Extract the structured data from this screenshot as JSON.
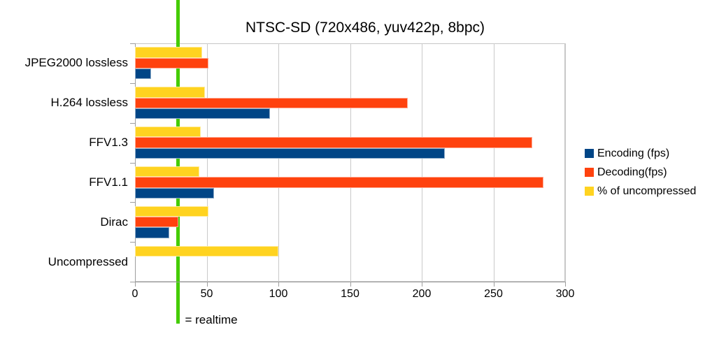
{
  "chart_data": {
    "type": "bar",
    "orientation": "horizontal",
    "title": "NTSC-SD (720x486, yuv422p, 8bpc)",
    "categories": [
      "JPEG2000 lossless",
      "H.264 lossless",
      "FFV1.3",
      "FFV1.1",
      "Dirac",
      "Uncompressed"
    ],
    "series": [
      {
        "name": "Encoding (fps)",
        "color": "#004586",
        "values": [
          11,
          94,
          216,
          55,
          24,
          null
        ]
      },
      {
        "name": "Decoding(fps)",
        "color": "#FF420E",
        "values": [
          51,
          190,
          277,
          285,
          30,
          null
        ]
      },
      {
        "name": "% of uncompressed",
        "color": "#FFD320",
        "values": [
          47,
          49,
          46,
          45,
          51,
          100
        ]
      }
    ],
    "xlim": [
      0,
      300
    ],
    "xticks": [
      0,
      50,
      100,
      150,
      200,
      250,
      300
    ],
    "grid": "vertical",
    "legend_position": "right",
    "realtime_line": {
      "value": 30,
      "label": "= realtime",
      "color": "#44CC00"
    }
  },
  "colors": {
    "background": "#ffffff",
    "gridline": "#c9c9c9",
    "axis": "#9e9e9e",
    "text": "#000000"
  }
}
